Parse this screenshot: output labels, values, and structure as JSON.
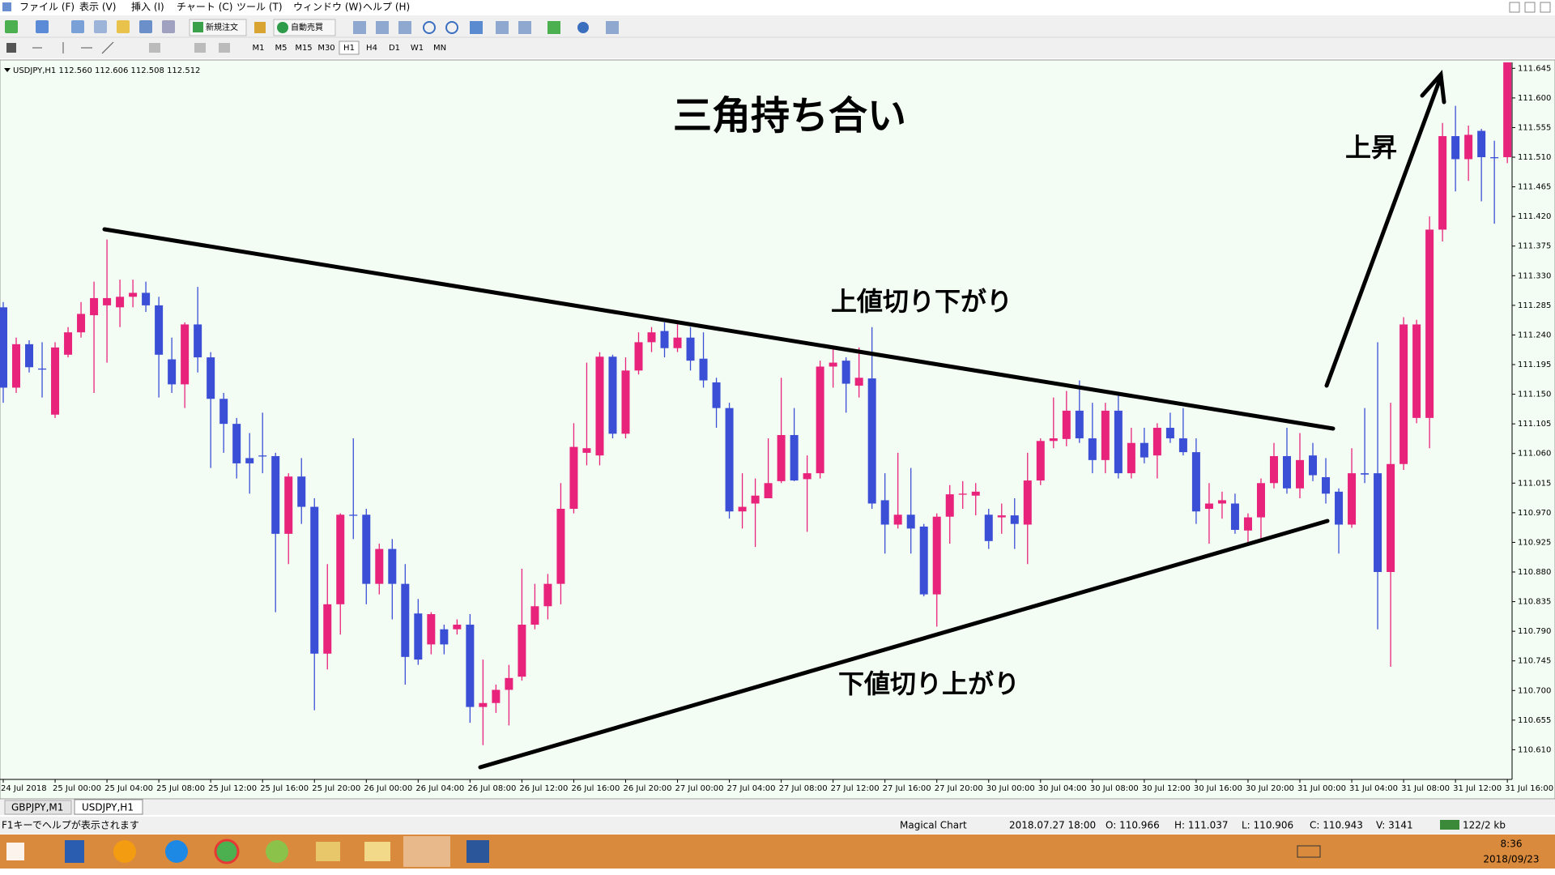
{
  "window": {
    "menu": [
      "ファイル (F)",
      "表示 (V)",
      "挿入 (I)",
      "チャート (C)",
      "ツール (T)",
      "ウィンドウ (W)",
      "ヘルプ (H)"
    ]
  },
  "toolbar": {
    "new_order": "新規注文",
    "auto_trading": "自動売買",
    "timeframes": [
      "M1",
      "M5",
      "M15",
      "M30",
      "H1",
      "H4",
      "D1",
      "W1",
      "MN"
    ]
  },
  "chart_data": {
    "type": "candlestick",
    "title": "USDJPY,H1 112.560 112.606 112.508 112.512",
    "annotations": [
      "三角持ち合い",
      "上値切り下がり",
      "下値切り上がり",
      "上昇"
    ],
    "up_color": "#e8237b",
    "down_color": "#3a4fd6",
    "grid": false,
    "ylim": [
      110.565,
      111.654
    ],
    "yticks": [
      111.645,
      {
        "value": 111.6,
        "label": "111.600"
      },
      111.555,
      {
        "value": 111.51,
        "label": "111.510"
      },
      111.465,
      {
        "value": 111.42,
        "label": "111.420"
      },
      111.375,
      {
        "value": 111.33,
        "label": "111.330"
      },
      111.285,
      {
        "value": 111.24,
        "label": "111.240"
      },
      111.195,
      {
        "value": 111.15,
        "label": "111.150"
      },
      111.105,
      {
        "value": 111.06,
        "label": "111.060"
      },
      111.015,
      {
        "value": 110.97,
        "label": "110.970"
      },
      110.925,
      {
        "value": 110.88,
        "label": "110.880"
      },
      110.835,
      {
        "value": 110.79,
        "label": "110.790"
      },
      110.745,
      {
        "value": 110.7,
        "label": "110.700"
      },
      110.655,
      {
        "value": 110.61,
        "label": "110.610"
      }
    ],
    "x_labels": [
      "24 Jul 2018",
      "25 Jul 00:00",
      "25 Jul 04:00",
      "25 Jul 08:00",
      "25 Jul 12:00",
      "25 Jul 16:00",
      "25 Jul 20:00",
      "26 Jul 00:00",
      "26 Jul 04:00",
      "26 Jul 08:00",
      "26 Jul 12:00",
      "26 Jul 16:00",
      "26 Jul 20:00",
      "27 Jul 00:00",
      "27 Jul 04:00",
      "27 Jul 08:00",
      "27 Jul 12:00",
      "27 Jul 16:00",
      "27 Jul 20:00",
      "30 Jul 00:00",
      "30 Jul 04:00",
      "30 Jul 08:00",
      "30 Jul 12:00",
      "30 Jul 16:00",
      "30 Jul 20:00",
      "31 Jul 00:00",
      "31 Jul 04:00",
      "31 Jul 08:00",
      "31 Jul 12:00",
      "31 Jul 16:00"
    ],
    "ohlc": [
      [
        111.282,
        111.29,
        111.137,
        111.16
      ],
      [
        111.16,
        111.236,
        111.152,
        111.226
      ],
      [
        111.226,
        111.232,
        111.183,
        111.191
      ],
      [
        111.189,
        111.229,
        111.145,
        111.188
      ],
      [
        111.119,
        111.229,
        111.114,
        111.221
      ],
      [
        111.21,
        111.252,
        111.206,
        111.244
      ],
      [
        111.244,
        111.29,
        111.236,
        111.272
      ],
      [
        111.27,
        111.321,
        111.152,
        111.296
      ],
      [
        111.285,
        111.385,
        111.198,
        111.296
      ],
      [
        111.282,
        111.324,
        111.252,
        111.298
      ],
      [
        111.298,
        111.324,
        111.282,
        111.304
      ],
      [
        111.304,
        111.321,
        111.275,
        111.285
      ],
      [
        111.285,
        111.298,
        111.145,
        111.21
      ],
      [
        111.203,
        111.236,
        111.152,
        111.165
      ],
      [
        111.165,
        111.259,
        111.129,
        111.256
      ],
      [
        111.256,
        111.313,
        111.183,
        111.206
      ],
      [
        111.206,
        111.214,
        111.038,
        111.143
      ],
      [
        111.143,
        111.152,
        111.061,
        111.105
      ],
      [
        111.105,
        111.114,
        111.022,
        111.045
      ],
      [
        111.053,
        111.091,
        110.999,
        111.045
      ],
      [
        111.057,
        111.122,
        111.03,
        111.056
      ],
      [
        111.056,
        111.061,
        110.819,
        110.938
      ],
      [
        110.938,
        111.03,
        110.892,
        111.025
      ],
      [
        111.025,
        111.053,
        110.953,
        110.979
      ],
      [
        110.979,
        110.992,
        110.67,
        110.756
      ],
      [
        110.756,
        110.892,
        110.732,
        110.831
      ],
      [
        110.831,
        110.969,
        110.785,
        110.967
      ],
      [
        110.967,
        111.083,
        110.93,
        110.966
      ],
      [
        110.967,
        110.976,
        110.831,
        110.862
      ],
      [
        110.862,
        110.923,
        110.846,
        110.915
      ],
      [
        110.915,
        110.93,
        110.808,
        110.862
      ],
      [
        110.862,
        110.892,
        110.709,
        110.751
      ],
      [
        110.817,
        110.839,
        110.739,
        110.747
      ],
      [
        110.77,
        110.819,
        110.755,
        110.816
      ],
      [
        110.793,
        110.8,
        110.755,
        110.77
      ],
      [
        110.793,
        110.808,
        110.785,
        110.8
      ],
      [
        110.8,
        110.816,
        110.651,
        110.675
      ],
      [
        110.675,
        110.747,
        110.617,
        110.681
      ],
      [
        110.681,
        110.709,
        110.666,
        110.701
      ],
      [
        110.701,
        110.739,
        110.647,
        110.719
      ],
      [
        110.721,
        110.885,
        110.715,
        110.8
      ],
      [
        110.8,
        110.862,
        110.793,
        110.828
      ],
      [
        110.828,
        110.877,
        110.808,
        110.862
      ],
      [
        110.862,
        111.015,
        110.831,
        110.976
      ],
      [
        110.976,
        111.106,
        110.969,
        111.07
      ],
      [
        111.061,
        111.198,
        111.042,
        111.068
      ],
      [
        111.057,
        111.214,
        111.042,
        111.207
      ],
      [
        111.207,
        111.21,
        111.083,
        111.09
      ],
      [
        111.09,
        111.206,
        111.083,
        111.186
      ],
      [
        111.186,
        111.244,
        111.18,
        111.229
      ],
      [
        111.229,
        111.252,
        111.214,
        111.244
      ],
      [
        111.246,
        111.259,
        111.206,
        111.22
      ],
      [
        111.22,
        111.256,
        111.214,
        111.236
      ],
      [
        111.236,
        111.252,
        111.186,
        111.201
      ],
      [
        111.204,
        111.244,
        111.16,
        111.171
      ],
      [
        111.168,
        111.175,
        111.099,
        111.129
      ],
      [
        111.129,
        111.137,
        110.961,
        110.972
      ],
      [
        110.972,
        111.03,
        110.946,
        110.979
      ],
      [
        110.984,
        111.022,
        110.918,
        110.996
      ],
      [
        110.992,
        111.083,
        110.992,
        111.015
      ],
      [
        111.018,
        111.175,
        111.015,
        111.088
      ],
      [
        111.088,
        111.129,
        111.018,
        111.019
      ],
      [
        111.021,
        111.057,
        110.941,
        111.03
      ],
      [
        111.03,
        111.201,
        111.022,
        111.192
      ],
      [
        111.192,
        111.224,
        111.16,
        111.198
      ],
      [
        111.201,
        111.206,
        111.122,
        111.166
      ],
      [
        111.163,
        111.221,
        111.145,
        111.175
      ],
      [
        111.174,
        111.252,
        110.976,
        110.984
      ],
      [
        110.989,
        111.03,
        110.908,
        110.952
      ],
      [
        110.952,
        111.061,
        110.946,
        110.967
      ],
      [
        110.967,
        111.038,
        110.908,
        110.946
      ],
      [
        110.949,
        110.953,
        110.843,
        110.846
      ],
      [
        110.846,
        110.969,
        110.797,
        110.964
      ],
      [
        110.964,
        111.012,
        110.923,
        110.998
      ],
      [
        110.998,
        111.018,
        110.976,
        110.999
      ],
      [
        110.996,
        111.015,
        110.966,
        111.002
      ],
      [
        110.967,
        110.976,
        110.915,
        110.927
      ],
      [
        110.963,
        110.984,
        110.938,
        110.966
      ],
      [
        110.966,
        110.992,
        110.915,
        110.953
      ],
      [
        110.952,
        111.061,
        110.892,
        111.019
      ],
      [
        111.019,
        111.083,
        111.012,
        111.079
      ],
      [
        111.079,
        111.145,
        111.068,
        111.083
      ],
      [
        111.082,
        111.155,
        111.071,
        111.125
      ],
      [
        111.125,
        111.171,
        111.076,
        111.083
      ],
      [
        111.083,
        111.137,
        111.03,
        111.05
      ],
      [
        111.05,
        111.137,
        111.03,
        111.125
      ],
      [
        111.125,
        111.152,
        111.022,
        111.03
      ],
      [
        111.03,
        111.099,
        111.022,
        111.076
      ],
      [
        111.076,
        111.099,
        111.045,
        111.054
      ],
      [
        111.057,
        111.106,
        111.022,
        111.099
      ],
      [
        111.099,
        111.122,
        111.076,
        111.083
      ],
      [
        111.083,
        111.129,
        111.057,
        111.062
      ],
      [
        111.062,
        111.083,
        110.953,
        110.972
      ],
      [
        110.976,
        111.015,
        110.923,
        110.984
      ],
      [
        110.984,
        111.002,
        110.961,
        110.989
      ],
      [
        110.984,
        110.999,
        110.938,
        110.944
      ],
      [
        110.943,
        110.969,
        110.923,
        110.963
      ],
      [
        110.963,
        111.022,
        110.93,
        111.015
      ],
      [
        111.015,
        111.076,
        111.007,
        111.056
      ],
      [
        111.056,
        111.099,
        110.999,
        111.007
      ],
      [
        111.007,
        111.091,
        110.992,
        111.05
      ],
      [
        111.057,
        111.076,
        111.018,
        111.027
      ],
      [
        111.024,
        111.053,
        110.984,
        110.999
      ],
      [
        111.002,
        111.007,
        110.908,
        110.952
      ],
      [
        110.952,
        111.068,
        110.947,
        111.03
      ],
      [
        111.03,
        111.129,
        111.015,
        111.028
      ],
      [
        111.03,
        111.229,
        110.793,
        110.88
      ],
      [
        110.88,
        111.137,
        110.736,
        111.044
      ],
      [
        111.044,
        111.267,
        111.035,
        111.256
      ],
      [
        111.114,
        111.263,
        111.106,
        111.256
      ],
      [
        111.114,
        111.42,
        111.068,
        111.4
      ],
      [
        111.4,
        111.562,
        111.382,
        111.542
      ],
      [
        111.542,
        111.588,
        111.458,
        111.507
      ],
      [
        111.507,
        111.558,
        111.474,
        111.544
      ],
      [
        111.55,
        111.553,
        111.443,
        111.51
      ],
      [
        111.51,
        111.535,
        111.409,
        111.509
      ],
      [
        111.51,
        111.654,
        111.501,
        111.654
      ]
    ]
  },
  "tabs": [
    "GBPJPY,M1",
    "USDJPY,H1"
  ],
  "status_bar": {
    "help": "F1キーでヘルプが表示されます",
    "profile": "Magical Chart",
    "time": "2018.07.27 18:00",
    "open": "O: 110.966",
    "high": "H: 111.037",
    "low": "L: 110.906",
    "close": "C: 110.943",
    "volume": "V: 3141",
    "traffic": "122/2 kb"
  },
  "taskbar": {
    "time": "8:36",
    "date": "2018/09/23"
  }
}
